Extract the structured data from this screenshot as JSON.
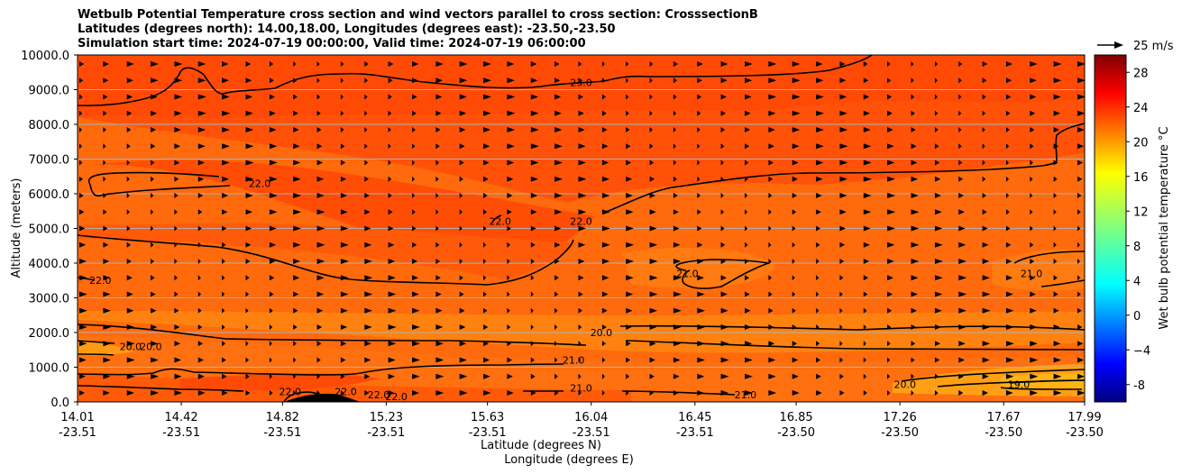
{
  "title": {
    "line1": "Wetbulb Potential Temperature cross section and wind vectors parallel to cross section: CrosssectionB",
    "line2": "Latitudes (degrees north): 14.00,18.00, Longitudes (degrees east): -23.50,-23.50",
    "line3": "Simulation start time: 2024-07-19 00:00:00, Valid time: 2024-07-19 06:00:00"
  },
  "chart_data": {
    "type": "heatmap",
    "subtype": "filled contour cross section with wind vectors",
    "xlabel_lat": "Latitude (degrees N)",
    "xlabel_lon": "Longitude (degrees E)",
    "ylabel": "Altitude (meters)",
    "ylim": [
      0,
      10000
    ],
    "y_ticks": [
      "0.0",
      "1000.0",
      "2000.0",
      "3000.0",
      "4000.0",
      "5000.0",
      "6000.0",
      "7000.0",
      "8000.0",
      "9000.0",
      "10000.0"
    ],
    "x_ticks": [
      {
        "lat": "14.01",
        "lon": "-23.51"
      },
      {
        "lat": "14.42",
        "lon": "-23.51"
      },
      {
        "lat": "14.82",
        "lon": "-23.51"
      },
      {
        "lat": "15.23",
        "lon": "-23.51"
      },
      {
        "lat": "15.63",
        "lon": "-23.51"
      },
      {
        "lat": "16.04",
        "lon": "-23.51"
      },
      {
        "lat": "16.45",
        "lon": "-23.51"
      },
      {
        "lat": "16.85",
        "lon": "-23.50"
      },
      {
        "lat": "17.26",
        "lon": "-23.50"
      },
      {
        "lat": "17.67",
        "lon": "-23.50"
      },
      {
        "lat": "17.99",
        "lon": "-23.50"
      }
    ],
    "x_range": [
      14.01,
      17.99
    ],
    "grid": "horizontal",
    "colorbar": {
      "label": "Wet bulb potential temperature °C",
      "range": [
        -10,
        30
      ],
      "ticks": [
        "-8",
        "−4",
        "0",
        "4",
        "8",
        "12",
        "16",
        "20",
        "24",
        "28"
      ],
      "tick_values": [
        -8,
        -4,
        0,
        4,
        8,
        12,
        16,
        20,
        24,
        28
      ],
      "colormap": "jet"
    },
    "quiver_key": {
      "label": "25 m/s",
      "speed": 25
    },
    "contour_labels": [
      {
        "text": "23.0",
        "x": 16.0,
        "y": 9100
      },
      {
        "text": "22.0",
        "x": 14.73,
        "y": 6200
      },
      {
        "text": "22.0",
        "x": 15.68,
        "y": 5100
      },
      {
        "text": "22.0",
        "x": 16.0,
        "y": 5100
      },
      {
        "text": "22.0",
        "x": 14.1,
        "y": 3400
      },
      {
        "text": "21.0",
        "x": 16.42,
        "y": 3600
      },
      {
        "text": "21.0",
        "x": 17.78,
        "y": 3600
      },
      {
        "text": "20.0",
        "x": 14.3,
        "y": 1500
      },
      {
        "text": "20.0",
        "x": 14.22,
        "y": 1500
      },
      {
        "text": "20.0",
        "x": 16.08,
        "y": 1900
      },
      {
        "text": "21.0",
        "x": 15.97,
        "y": 1100
      },
      {
        "text": "21.0",
        "x": 16.0,
        "y": 300
      },
      {
        "text": "21.0",
        "x": 16.65,
        "y": 100
      },
      {
        "text": "22.0",
        "x": 14.85,
        "y": 200
      },
      {
        "text": "22.0",
        "x": 15.07,
        "y": 200
      },
      {
        "text": "22.0",
        "x": 15.2,
        "y": 100
      },
      {
        "text": "22.0",
        "x": 15.27,
        "y": 50
      },
      {
        "text": "20.0",
        "x": 17.28,
        "y": 400
      },
      {
        "text": "19.0",
        "x": 17.73,
        "y": 400
      }
    ]
  }
}
